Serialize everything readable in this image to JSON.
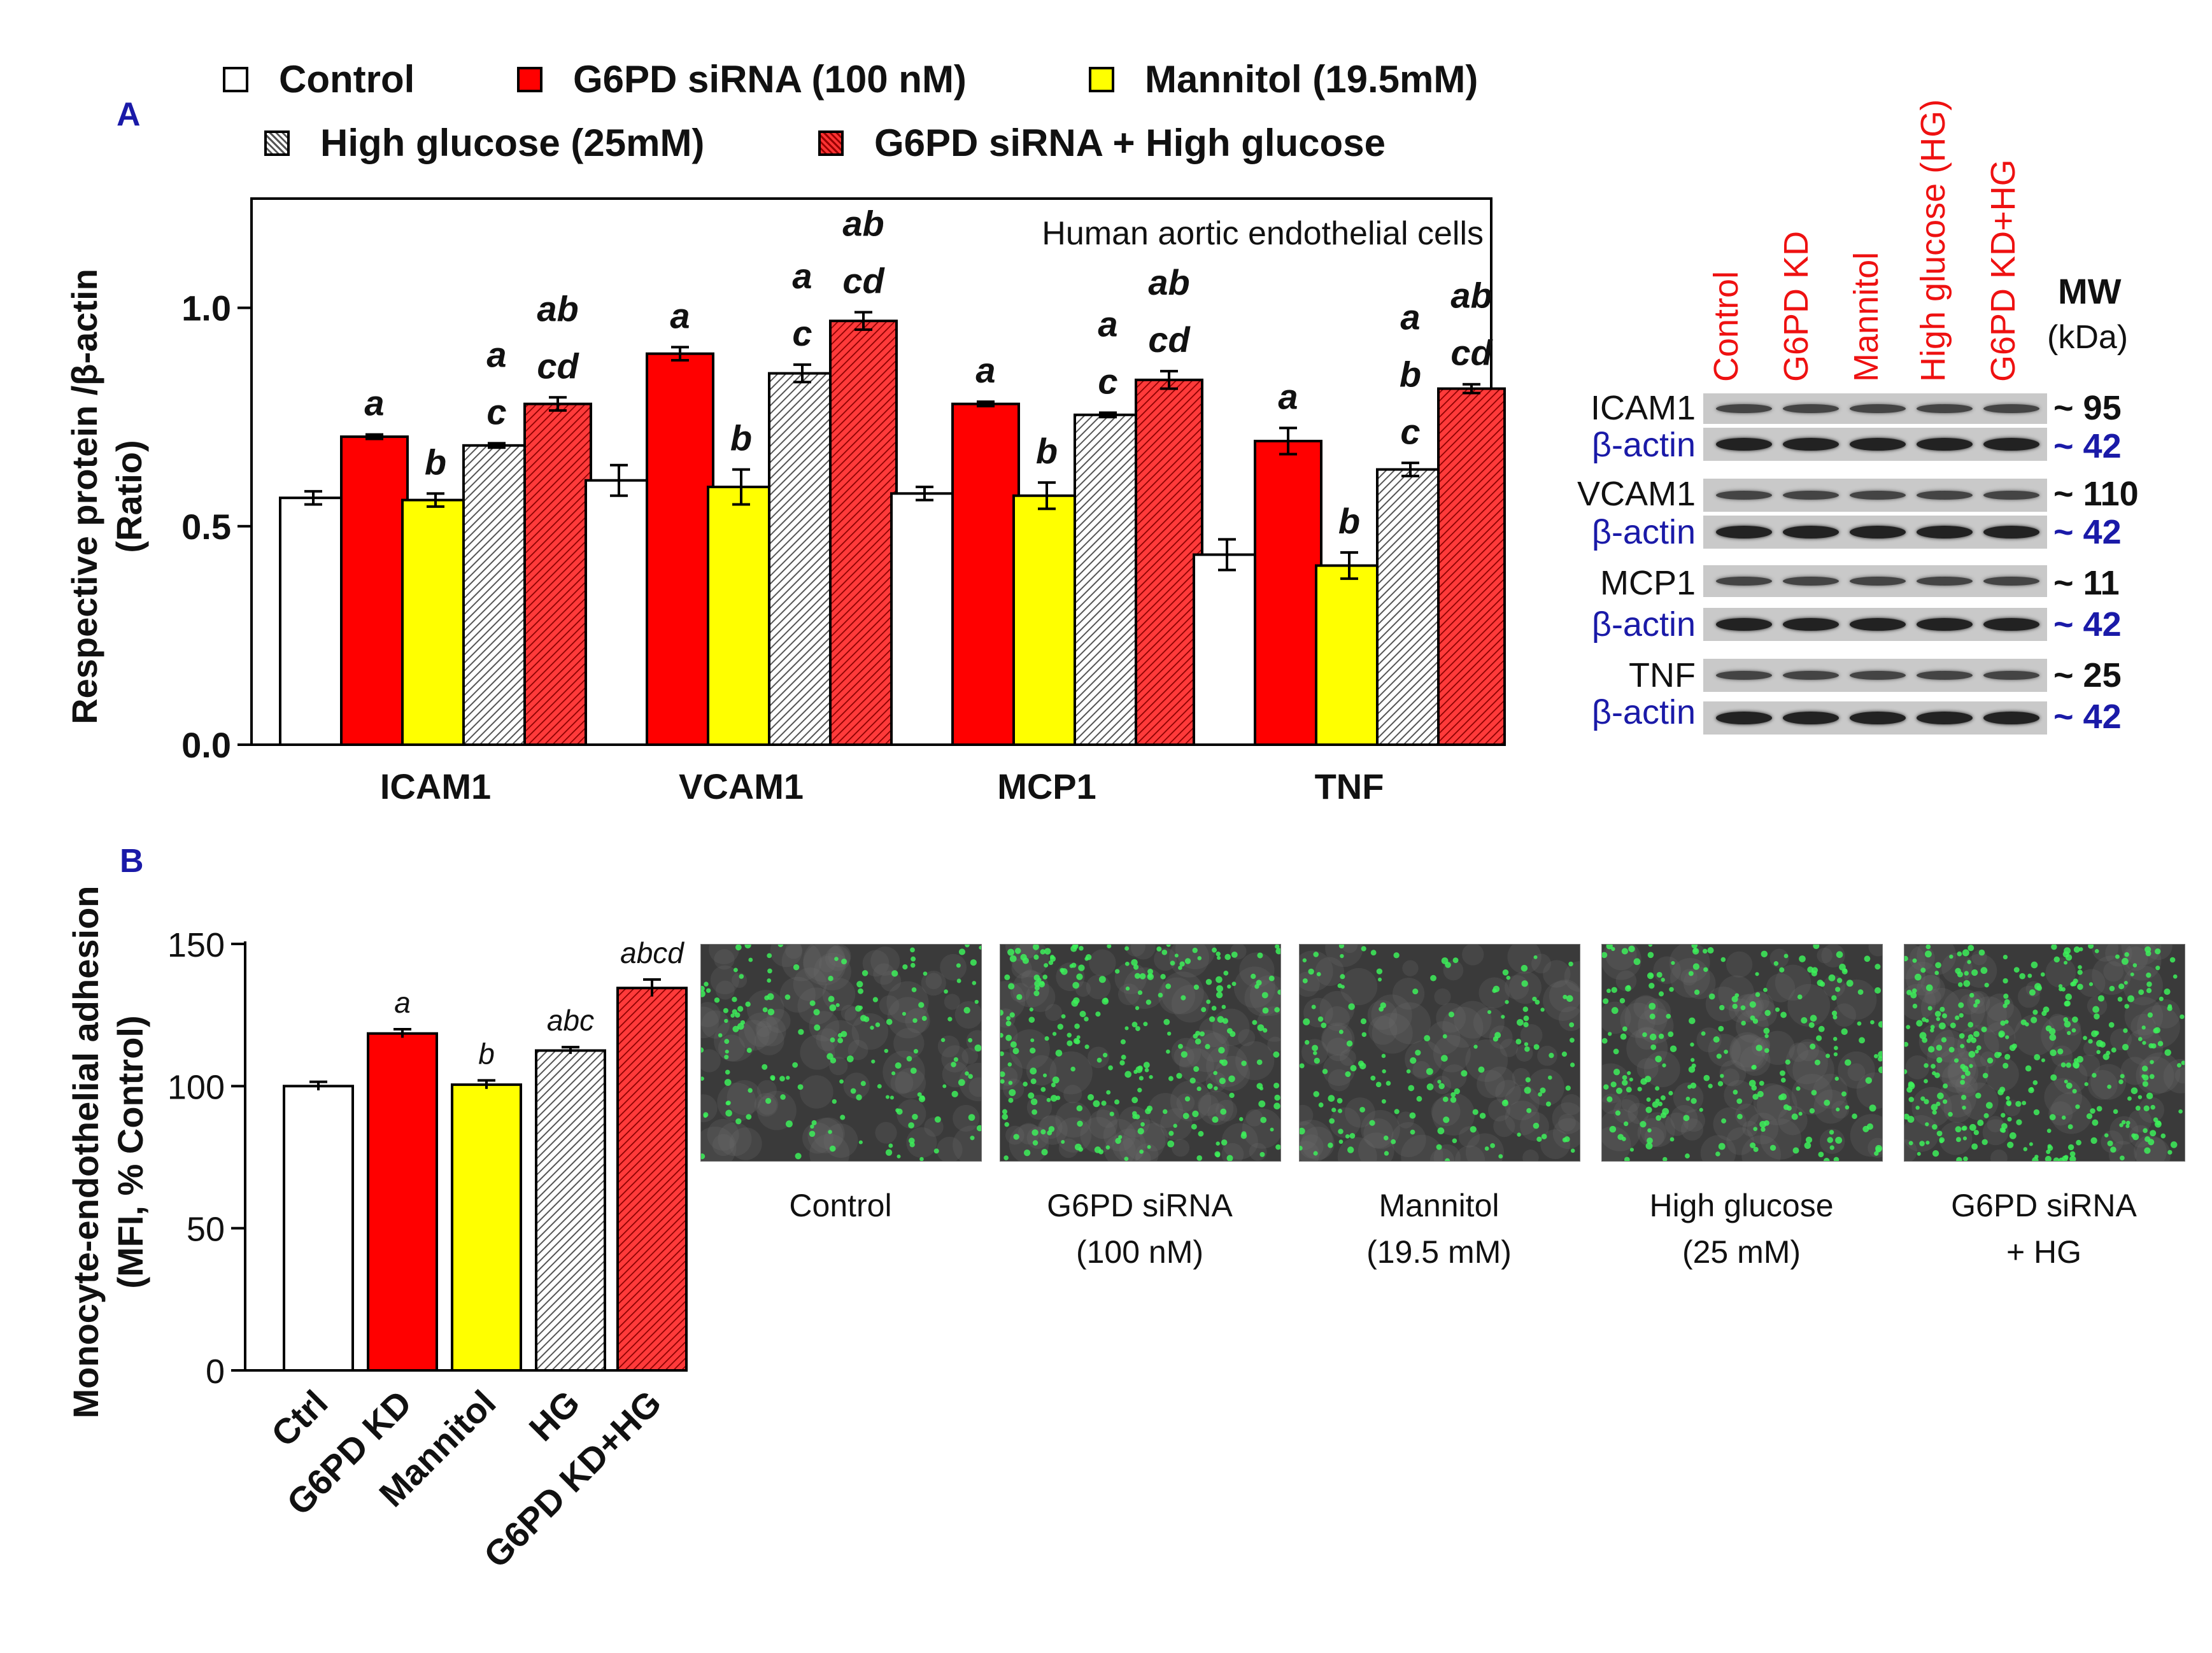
{
  "panels": {
    "a_label": "A",
    "b_label": "B"
  },
  "legend": {
    "items": [
      {
        "label": "Control",
        "pattern": "white"
      },
      {
        "label": "G6PD siRNA (100 nM)",
        "pattern": "red"
      },
      {
        "label": "Mannitol (19.5mM)",
        "pattern": "yellow"
      },
      {
        "label": "High glucose (25mM)",
        "pattern": "hatch-gray"
      },
      {
        "label": "G6PD siRNA + High glucose",
        "pattern": "hatch-red"
      }
    ]
  },
  "colors": {
    "control": "#ffffff",
    "g6pd": "#ff0000",
    "mannitol": "#ffff00",
    "hg": "#e6e6e6",
    "combo": "#ff3333",
    "letter_blue": "#1a1aa8",
    "lane_red": "#ee1111"
  },
  "chart_data": [
    {
      "type": "bar",
      "title": "Human aortic endothelial cells",
      "xlabel": "",
      "ylabel": "Respective protein /β-actin (Ratio)",
      "ylabel_lines": [
        "Respective protein /β-actin",
        "(Ratio)"
      ],
      "ylim": [
        0,
        1.25
      ],
      "yticks": [
        "0.0",
        "0.5",
        "1.0"
      ],
      "categories": [
        "ICAM1",
        "VCAM1",
        "MCP1",
        "TNF"
      ],
      "series": [
        {
          "name": "Control",
          "values": [
            0.565,
            0.605,
            0.575,
            0.435
          ],
          "errors": [
            0.015,
            0.035,
            0.015,
            0.035
          ],
          "annotations": [
            "",
            "",
            "",
            ""
          ]
        },
        {
          "name": "G6PD siRNA (100 nM)",
          "values": [
            0.705,
            0.895,
            0.78,
            0.695
          ],
          "errors": [
            0.005,
            0.015,
            0.005,
            0.03
          ],
          "annotations": [
            "a",
            "a",
            "a",
            "a"
          ]
        },
        {
          "name": "Mannitol (19.5mM)",
          "values": [
            0.56,
            0.59,
            0.57,
            0.41
          ],
          "errors": [
            0.015,
            0.04,
            0.03,
            0.03
          ],
          "annotations": [
            "b",
            "b",
            "b",
            "b"
          ]
        },
        {
          "name": "High glucose (25mM)",
          "values": [
            0.685,
            0.85,
            0.755,
            0.63
          ],
          "errors": [
            0.005,
            0.02,
            0.005,
            0.015
          ],
          "annotations": [
            "a\nc",
            "a\nc",
            "a\nc",
            "a\nb\nc"
          ]
        },
        {
          "name": "G6PD siRNA + High glucose",
          "values": [
            0.78,
            0.97,
            0.835,
            0.815
          ],
          "errors": [
            0.015,
            0.02,
            0.02,
            0.01
          ],
          "annotations": [
            "ab\ncd",
            "ab\ncd",
            "ab\ncd",
            "ab\ncd"
          ]
        }
      ]
    },
    {
      "type": "bar",
      "title": "",
      "xlabel": "",
      "ylabel": "Monocyte-endothelial adhesion (MFI, % Control)",
      "ylabel_lines": [
        "Monocyte-endothelial adhesion",
        "(MFI, % Control)"
      ],
      "ylim": [
        0,
        150
      ],
      "yticks": [
        "0",
        "50",
        "100",
        "150"
      ],
      "categories": [
        "Ctrl",
        "G6PD KD",
        "Mannitol",
        "HG",
        "G6PD KD+HG"
      ],
      "values": [
        100,
        118.5,
        100.5,
        112.5,
        134.5
      ],
      "errors": [
        1.5,
        1.5,
        1.5,
        1.2,
        3.0
      ],
      "annotations": [
        "",
        "a",
        "b",
        "abc",
        "abcd"
      ]
    }
  ],
  "micrographs": [
    {
      "label_line1": "Control",
      "label_line2": "",
      "density": 160
    },
    {
      "label_line1": "G6PD siRNA",
      "label_line2": "(100 nM)",
      "density": 270
    },
    {
      "label_line1": "Mannitol",
      "label_line2": "(19.5 mM)",
      "density": 150
    },
    {
      "label_line1": "High glucose",
      "label_line2": "(25 mM)",
      "density": 230
    },
    {
      "label_line1": "G6PD siRNA",
      "label_line2": "+ HG",
      "density": 340
    }
  ],
  "western_blot": {
    "lanes": [
      "Control",
      "G6PD KD",
      "Mannitol",
      "High  glucose (HG)",
      "G6PD KD+HG"
    ],
    "mw_header": "MW",
    "mw_unit": "(kDa)",
    "rows": [
      {
        "protein": "ICAM1",
        "mw": "~ 95",
        "actin_label": "β-actin",
        "actin_mw": "~ 42"
      },
      {
        "protein": "VCAM1",
        "mw": "~ 110",
        "actin_label": "β-actin",
        "actin_mw": "~ 42"
      },
      {
        "protein": "MCP1",
        "mw": "~ 11",
        "actin_label": "β-actin",
        "actin_mw": "~ 42"
      },
      {
        "protein": "TNF",
        "mw": "~ 25",
        "actin_label": "β-actin",
        "actin_mw": "~ 42"
      }
    ]
  }
}
